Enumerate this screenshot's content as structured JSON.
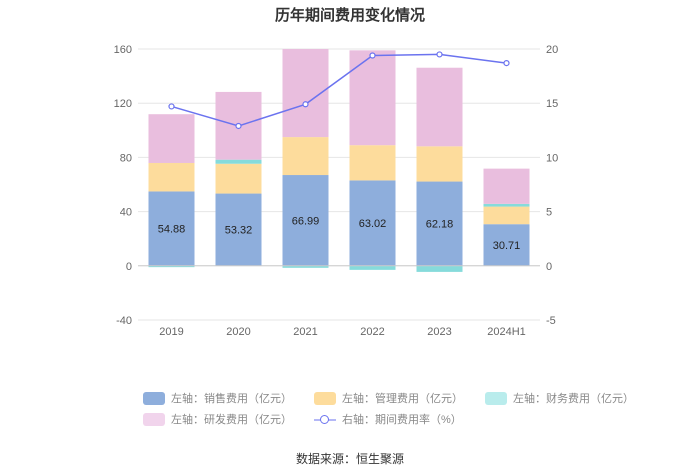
{
  "chart_data": {
    "type": "bar",
    "stacked": true,
    "title": "历年期间费用变化情况",
    "categories": [
      "2019",
      "2020",
      "2021",
      "2022",
      "2023",
      "2024H1"
    ],
    "y_left": {
      "ticks": [
        "160",
        "120",
        "80",
        "40",
        "0",
        "-40"
      ],
      "ylim": [
        -40,
        160
      ]
    },
    "y_right": {
      "ticks": [
        "20",
        "15",
        "10",
        "5",
        "0",
        "-5"
      ],
      "ylim": [
        -5,
        20
      ]
    },
    "series": [
      {
        "name": "左轴：销售费用（亿元）",
        "color": "#8eaedc",
        "values": [
          54.88,
          53.32,
          66.99,
          63.02,
          62.18,
          30.71
        ],
        "labels": [
          "54.88",
          "53.32",
          "66.99",
          "63.02",
          "62.18",
          "30.71"
        ]
      },
      {
        "name": "左轴：管理费用（亿元）",
        "color": "#fddc9c",
        "values": [
          21,
          22,
          28,
          26,
          26,
          13
        ]
      },
      {
        "name": "左轴：财务费用（亿元）",
        "color": "#86dbdb",
        "values": [
          -1,
          3,
          -1.5,
          -3,
          -4.5,
          2
        ]
      },
      {
        "name": "左轴：研发费用（亿元）",
        "color": "#e9bede",
        "values": [
          36,
          50,
          65,
          70,
          58,
          26
        ]
      }
    ],
    "line_series": {
      "name": "右轴：期间费用率（%）",
      "color": "#6b73ef",
      "values": [
        14.7,
        12.9,
        14.9,
        19.4,
        19.5,
        18.7
      ]
    }
  },
  "source": "数据来源：恒生聚源"
}
